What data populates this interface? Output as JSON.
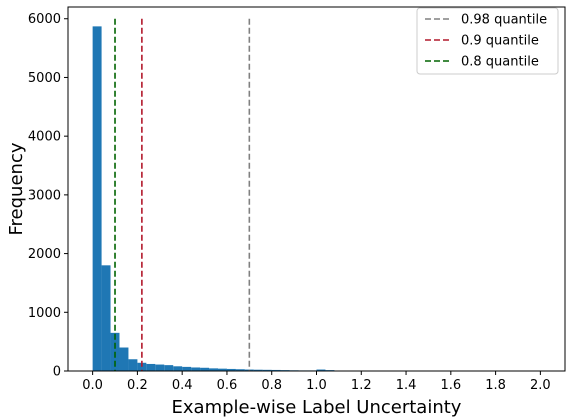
{
  "chart_data": {
    "type": "bar",
    "xlabel": "Example-wise Label Uncertainty",
    "ylabel": "Frequency",
    "xlim": [
      -0.11,
      2.11
    ],
    "ylim": [
      0,
      6200
    ],
    "x_ticks": [
      0.0,
      0.2,
      0.4,
      0.6,
      0.8,
      1.0,
      1.2,
      1.4,
      1.6,
      1.8,
      2.0
    ],
    "x_tick_labels": [
      "0.0",
      "0.2",
      "0.4",
      "0.6",
      "0.8",
      "1.0",
      "1.2",
      "1.4",
      "1.6",
      "1.8",
      "2.0"
    ],
    "y_ticks": [
      0,
      1000,
      2000,
      3000,
      4000,
      5000,
      6000
    ],
    "y_tick_labels": [
      "0",
      "1000",
      "2000",
      "3000",
      "4000",
      "5000",
      "6000"
    ],
    "bin_width": 0.04,
    "bin_starts": [
      0.0,
      0.04,
      0.08,
      0.12,
      0.16,
      0.2,
      0.24,
      0.28,
      0.32,
      0.36,
      0.4,
      0.44,
      0.48,
      0.52,
      0.56,
      0.6,
      0.64,
      0.68,
      0.72,
      0.76,
      0.8,
      0.84,
      0.88,
      0.92,
      0.96,
      1.0,
      1.04,
      1.08,
      1.12,
      1.16,
      1.2
    ],
    "values": [
      5870,
      1800,
      650,
      400,
      200,
      140,
      120,
      110,
      100,
      80,
      70,
      60,
      55,
      45,
      40,
      35,
      30,
      25,
      22,
      20,
      18,
      15,
      12,
      10,
      10,
      25,
      15,
      8,
      6,
      5,
      4
    ],
    "bar_color": "#1f77b4",
    "series": [
      {
        "name": "0.98 quantile",
        "x": 0.7,
        "color": "#808080",
        "style": "dashed"
      },
      {
        "name": "0.9 quantile",
        "x": 0.22,
        "color": "#b2182b",
        "style": "dashed"
      },
      {
        "name": "0.8 quantile",
        "x": 0.1,
        "color": "#006400",
        "style": "dashed"
      }
    ],
    "vline_top": 6000,
    "legend_position": "top-right",
    "grid": false
  }
}
